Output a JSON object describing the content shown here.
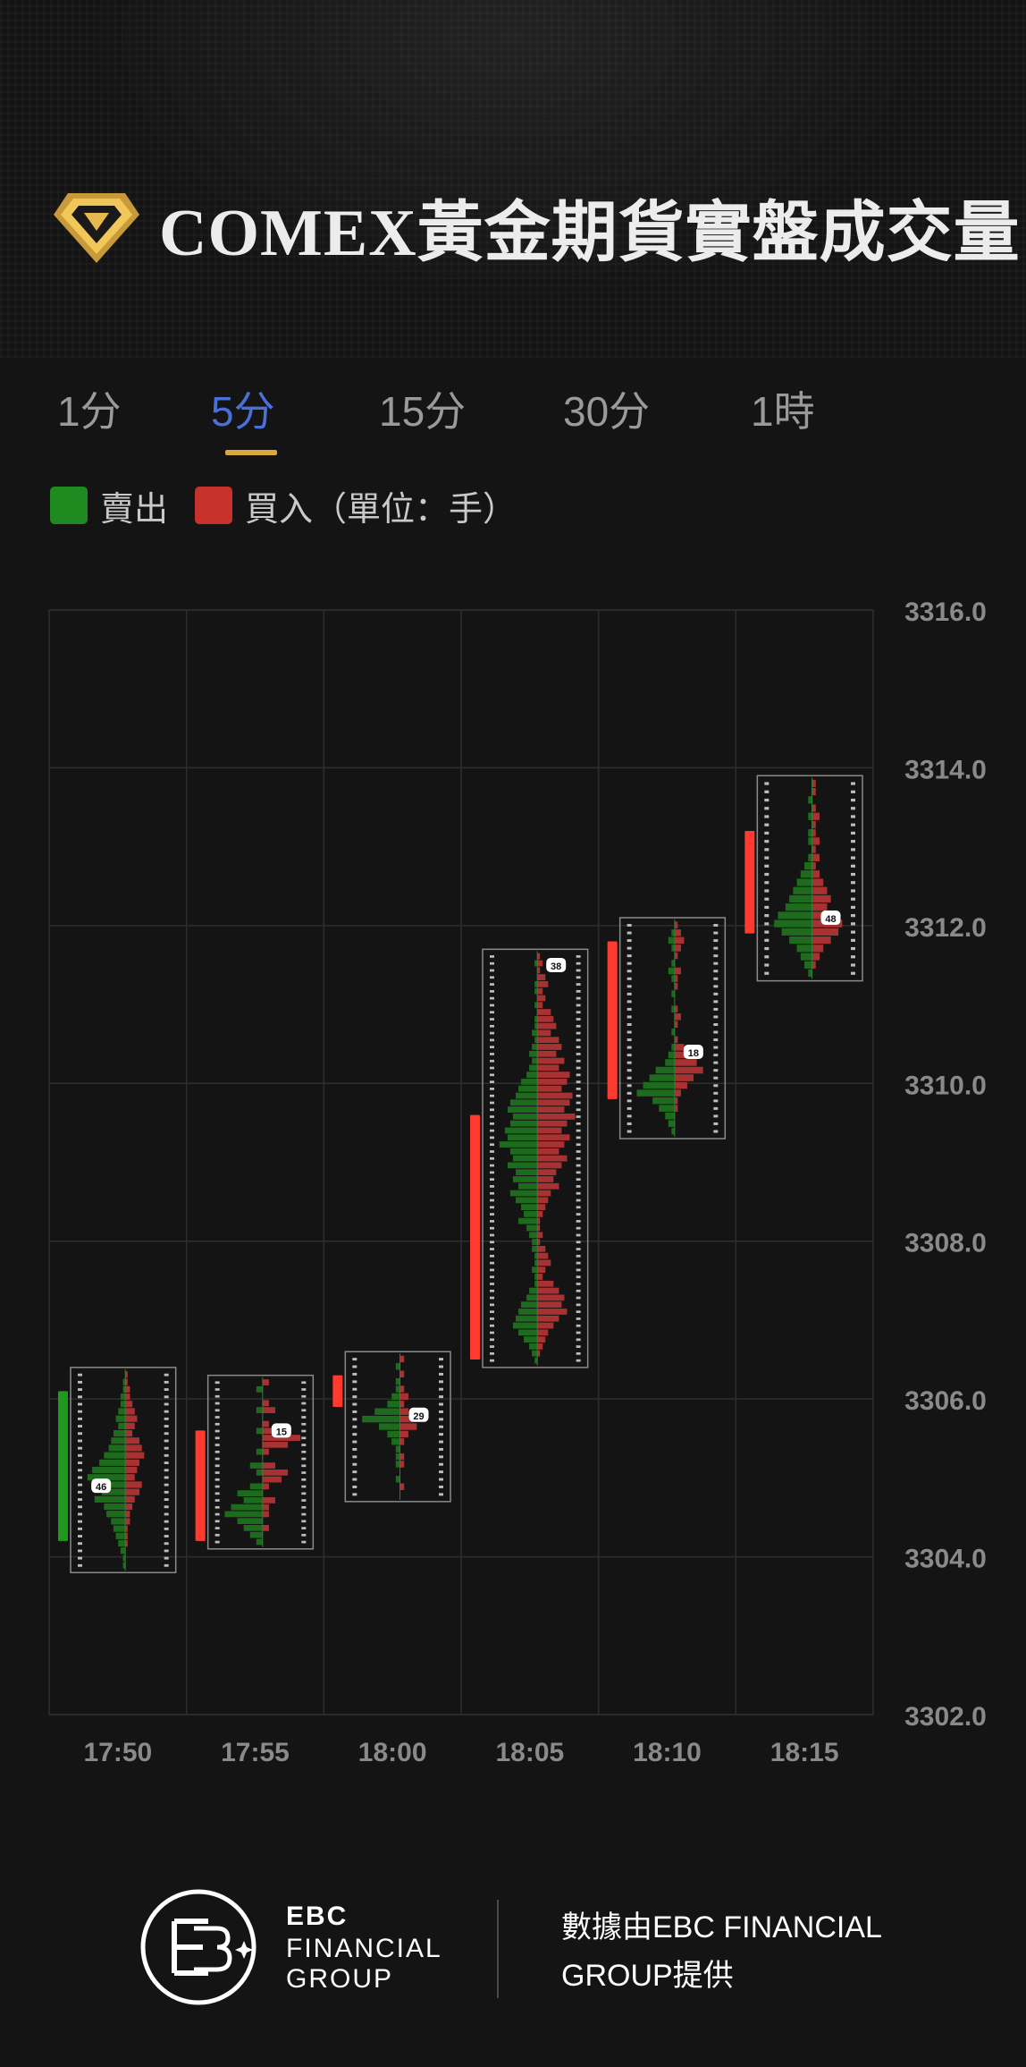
{
  "header": {
    "title": "COMEX黃金期貨實盤成交量",
    "logo_icon": "gold-diamond-icon"
  },
  "tabs": [
    {
      "label": "1分",
      "active": false
    },
    {
      "label": "5分",
      "active": true
    },
    {
      "label": "15分",
      "active": false
    },
    {
      "label": "30分",
      "active": false
    },
    {
      "label": "1時",
      "active": false
    }
  ],
  "legend": {
    "sell_label": "賣出",
    "buy_label": "買入（單位：手）",
    "sell_color": "#1f8a1f",
    "buy_color": "#c8322d"
  },
  "colors": {
    "background": "#141414",
    "grid": "#2e2e2e",
    "up_candle": "#ff3b30",
    "down_candle": "#1f9a1f",
    "sell_bar": "#1d6b1d",
    "buy_bar": "#a83232",
    "tab_active": "#4a6fd8",
    "tab_underline": "#d9a93a"
  },
  "chart_data": {
    "type": "footprint",
    "x_tick_labels": [
      "17:50",
      "17:55",
      "18:00",
      "18:05",
      "18:10",
      "18:15"
    ],
    "y_tick_labels": [
      "3316.0",
      "3314.0",
      "3312.0",
      "3310.0",
      "3308.0",
      "3306.0",
      "3304.0",
      "3302.0"
    ],
    "ylim": [
      3302.0,
      3316.0
    ],
    "grid": true,
    "candles": [
      {
        "time": "17:50",
        "open": 3306.1,
        "close": 3304.2,
        "direction": "down",
        "profile_high": 3306.4,
        "profile_low": 3303.8,
        "poc_price": 3304.9,
        "poc_value": "46",
        "sell": [
          0,
          1,
          1,
          2,
          2,
          3,
          4,
          3,
          5,
          6,
          7,
          9,
          11,
          14,
          16,
          12,
          10,
          13,
          9,
          8,
          6,
          5,
          4,
          3,
          2,
          1,
          1
        ],
        "buy": [
          1,
          1,
          2,
          2,
          3,
          4,
          5,
          4,
          3,
          6,
          7,
          8,
          6,
          5,
          4,
          7,
          6,
          4,
          3,
          2,
          2,
          1,
          1,
          1,
          0,
          0,
          0
        ]
      },
      {
        "time": "17:55",
        "open": 3304.2,
        "close": 3305.6,
        "direction": "up",
        "profile_high": 3306.3,
        "profile_low": 3304.1,
        "poc_price": 3305.6,
        "poc_value": "15",
        "sell": [
          0,
          1,
          0,
          0,
          1,
          0,
          0,
          1,
          0,
          0,
          1,
          0,
          2,
          1,
          0,
          2,
          4,
          3,
          5,
          6,
          4,
          3,
          2,
          1
        ],
        "buy": [
          1,
          0,
          0,
          1,
          2,
          0,
          1,
          3,
          6,
          4,
          1,
          0,
          2,
          4,
          3,
          1,
          0,
          2,
          1,
          1,
          0,
          1,
          0,
          0
        ]
      },
      {
        "time": "18:00",
        "open": 3305.9,
        "close": 3306.3,
        "direction": "up",
        "profile_high": 3306.6,
        "profile_low": 3304.7,
        "poc_price": 3305.8,
        "poc_value": "29",
        "sell": [
          0,
          1,
          0,
          1,
          1,
          2,
          3,
          6,
          9,
          5,
          3,
          2,
          1,
          1,
          1,
          0,
          1,
          0,
          0
        ],
        "buy": [
          1,
          0,
          1,
          0,
          1,
          2,
          1,
          2,
          3,
          4,
          2,
          1,
          0,
          1,
          1,
          0,
          0,
          1,
          0
        ]
      },
      {
        "time": "18:05",
        "open": 3306.5,
        "close": 3309.6,
        "direction": "up",
        "profile_high": 3311.7,
        "profile_low": 3306.4,
        "poc_price": 3311.5,
        "poc_value": "38",
        "sell": [
          0,
          1,
          0,
          0,
          1,
          1,
          0,
          1,
          0,
          1,
          1,
          2,
          1,
          2,
          3,
          2,
          3,
          4,
          6,
          7,
          8,
          10,
          11,
          9,
          10,
          12,
          11,
          14,
          10,
          9,
          11,
          8,
          9,
          7,
          10,
          8,
          6,
          5,
          7,
          4,
          3,
          2,
          2,
          1,
          1,
          2,
          1,
          1,
          3,
          4,
          6,
          7,
          8,
          9,
          7,
          5,
          3,
          2,
          1
        ],
        "buy": [
          1,
          2,
          1,
          3,
          4,
          2,
          3,
          2,
          5,
          6,
          7,
          5,
          8,
          9,
          7,
          10,
          8,
          12,
          11,
          9,
          13,
          12,
          10,
          14,
          11,
          9,
          12,
          10,
          8,
          11,
          9,
          7,
          6,
          8,
          5,
          4,
          3,
          2,
          1,
          1,
          2,
          1,
          3,
          4,
          5,
          3,
          2,
          6,
          8,
          10,
          9,
          11,
          8,
          6,
          4,
          3,
          2,
          1,
          0
        ]
      },
      {
        "time": "18:10",
        "open": 3309.8,
        "close": 3311.8,
        "direction": "up",
        "profile_high": 3312.1,
        "profile_low": 3309.3,
        "poc_price": 3310.4,
        "poc_value": "18",
        "sell": [
          0,
          1,
          2,
          1,
          0,
          1,
          2,
          1,
          0,
          1,
          0,
          1,
          0,
          0,
          1,
          0,
          1,
          2,
          3,
          6,
          8,
          10,
          12,
          7,
          5,
          3,
          2,
          1
        ],
        "buy": [
          1,
          2,
          3,
          2,
          1,
          0,
          2,
          1,
          1,
          0,
          0,
          1,
          2,
          1,
          0,
          1,
          3,
          5,
          7,
          9,
          6,
          4,
          2,
          1,
          1,
          0,
          0,
          0
        ]
      },
      {
        "time": "18:15",
        "open": 3311.9,
        "close": 3313.2,
        "direction": "up",
        "profile_high": 3313.9,
        "profile_low": 3311.3,
        "poc_price": 3312.1,
        "poc_value": "48",
        "sell": [
          0,
          0,
          1,
          0,
          1,
          0,
          1,
          1,
          0,
          1,
          2,
          3,
          4,
          5,
          6,
          7,
          9,
          10,
          8,
          6,
          4,
          3,
          2,
          1
        ],
        "buy": [
          1,
          1,
          0,
          1,
          2,
          1,
          1,
          2,
          1,
          2,
          1,
          2,
          3,
          4,
          5,
          4,
          6,
          8,
          7,
          5,
          3,
          2,
          1,
          0
        ]
      }
    ]
  },
  "footer": {
    "brand_line1": "EBC",
    "brand_line2": "FINANCIAL",
    "brand_line3": "GROUP",
    "credit_line1": "數據由EBC FINANCIAL",
    "credit_line2": "GROUP提供"
  }
}
